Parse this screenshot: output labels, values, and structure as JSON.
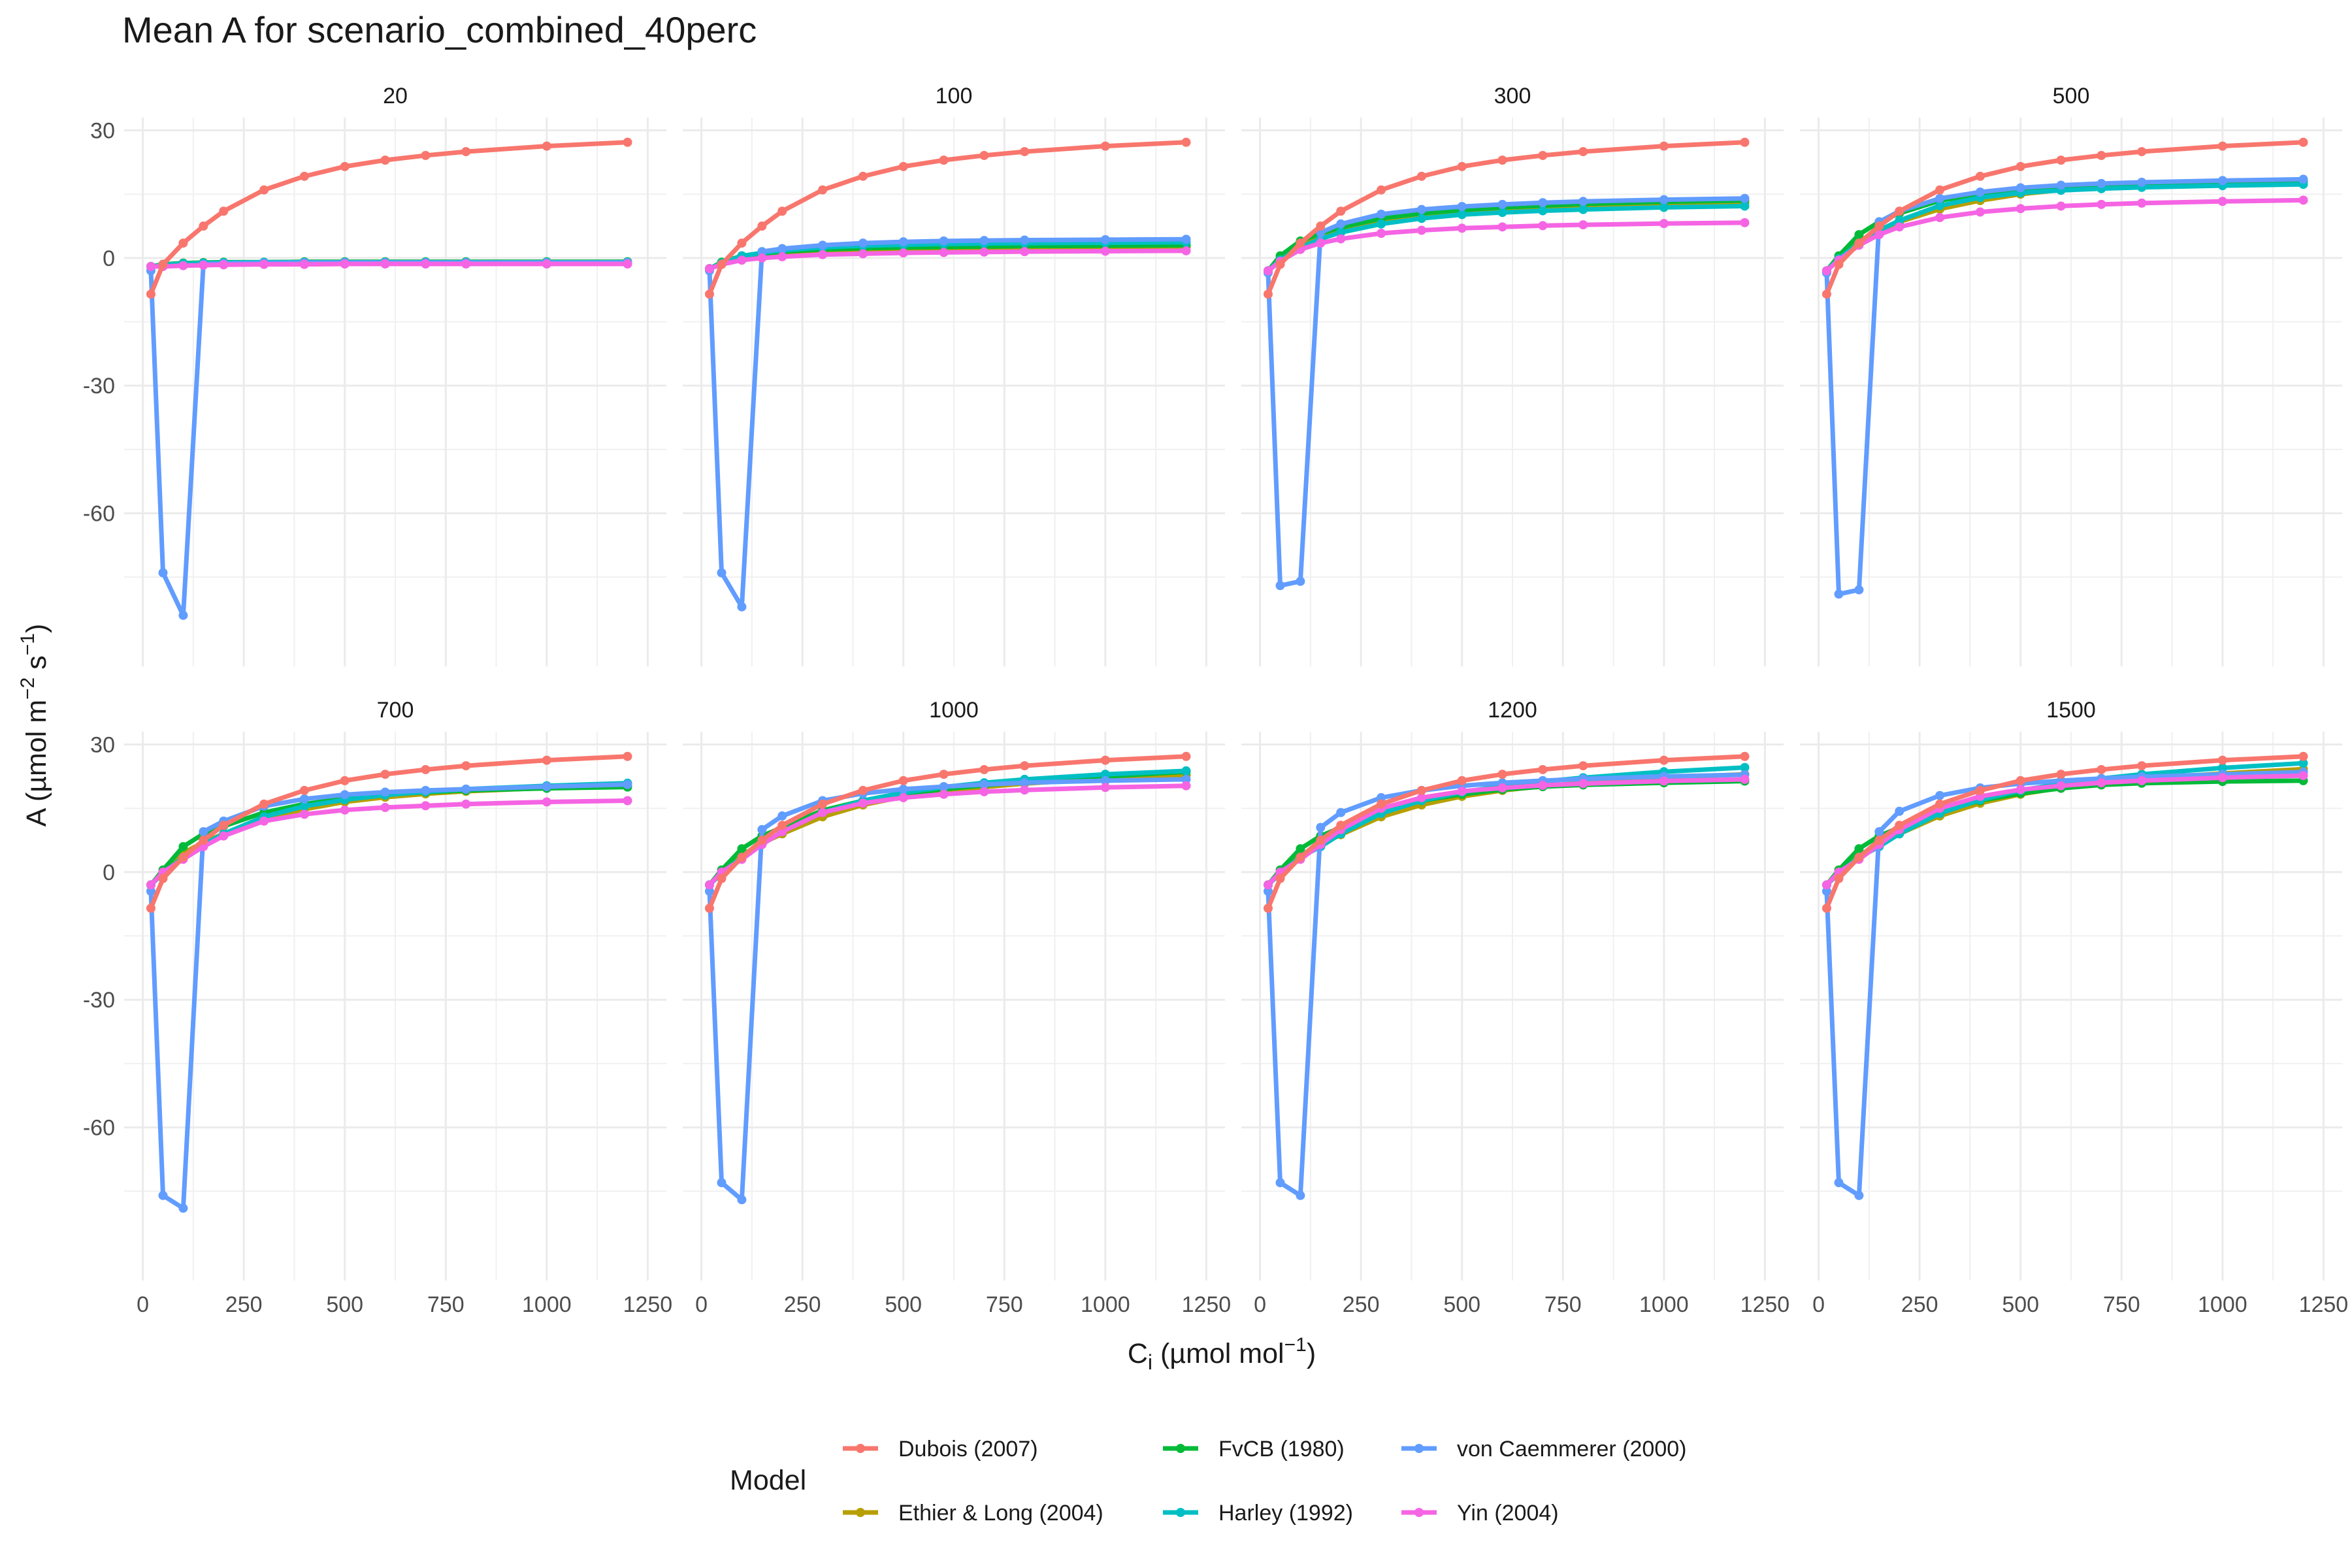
{
  "chart_data": {
    "type": "line",
    "title": "Mean A for scenario_combined_40perc",
    "xlabel": "C_i (µmol mol^-1)",
    "ylabel": "A (µmol m^-2 s^-1)",
    "xlim": [
      0,
      1250
    ],
    "ylim": [
      -90,
      30
    ],
    "x_ticks": [
      0,
      250,
      500,
      750,
      1000,
      1250
    ],
    "x_tick_labels": [
      "0",
      "250",
      "500",
      "750",
      "1000",
      "1250"
    ],
    "y_ticks": [
      -60,
      -30,
      0,
      30
    ],
    "y_tick_labels": [
      "-60",
      "-30",
      "0",
      "30"
    ],
    "x": [
      20,
      50,
      100,
      150,
      200,
      300,
      400,
      500,
      600,
      700,
      800,
      1000,
      1200
    ],
    "legend": {
      "title": "Model",
      "items": [
        {
          "name": "Dubois (2007)",
          "color": "#F8766D"
        },
        {
          "name": "Ethier & Long (2004)",
          "color": "#B79F00"
        },
        {
          "name": "FvCB (1980)",
          "color": "#00BA38"
        },
        {
          "name": "Harley (1992)",
          "color": "#00BFC4"
        },
        {
          "name": "von Caemmerer (2000)",
          "color": "#619CFF"
        },
        {
          "name": "Yin (2004)",
          "color": "#F564E3"
        }
      ]
    },
    "panels": [
      {
        "label": "20",
        "series": [
          {
            "name": "Ethier & Long (2004)",
            "values": [
              -2,
              -1.5,
              -1.2,
              -1.1,
              -1.0,
              -1.0,
              -0.9,
              -0.9,
              -0.9,
              -0.9,
              -0.9,
              -0.9,
              -0.9
            ]
          },
          {
            "name": "FvCB (1980)",
            "values": [
              -2,
              -1.5,
              -1.2,
              -1.1,
              -1.0,
              -1.0,
              -0.9,
              -0.9,
              -0.9,
              -0.9,
              -0.9,
              -0.9,
              -0.9
            ]
          },
          {
            "name": "Harley (1992)",
            "values": [
              -2,
              -1.6,
              -1.3,
              -1.2,
              -1.1,
              -1.0,
              -1.0,
              -1.0,
              -1.0,
              -1.0,
              -1.0,
              -1.0,
              -1.0
            ]
          },
          {
            "name": "von Caemmerer (2000)",
            "values": [
              -3,
              -74,
              -84,
              -1.5,
              -1.3,
              -1.2,
              -1.1,
              -1.1,
              -1.1,
              -1.1,
              -1.1,
              -1.1,
              -1.1
            ]
          },
          {
            "name": "Yin (2004)",
            "values": [
              -2,
              -2,
              -1.8,
              -1.7,
              -1.6,
              -1.5,
              -1.5,
              -1.4,
              -1.4,
              -1.4,
              -1.4,
              -1.4,
              -1.4
            ]
          },
          {
            "name": "Dubois (2007)",
            "values": [
              -8.5,
              -1.5,
              3.5,
              7.5,
              11,
              16,
              19.2,
              21.5,
              23,
              24.1,
              25,
              26.3,
              27.2
            ]
          }
        ]
      },
      {
        "label": "100",
        "series": [
          {
            "name": "Ethier & Long (2004)",
            "values": [
              -2.5,
              -1.5,
              0,
              0.5,
              1,
              1.5,
              1.8,
              2,
              2.2,
              2.3,
              2.4,
              2.5,
              2.6
            ]
          },
          {
            "name": "FvCB (1980)",
            "values": [
              -2.5,
              -1,
              0.5,
              1,
              1.5,
              2,
              2.3,
              2.5,
              2.6,
              2.7,
              2.8,
              2.9,
              3
            ]
          },
          {
            "name": "Harley (1992)",
            "values": [
              -2.5,
              -1.2,
              0.5,
              1.2,
              1.8,
              2.5,
              2.9,
              3.1,
              3.3,
              3.4,
              3.5,
              3.6,
              3.7
            ]
          },
          {
            "name": "von Caemmerer (2000)",
            "values": [
              -3,
              -74,
              -82,
              1.5,
              2.2,
              3,
              3.5,
              3.8,
              4,
              4.1,
              4.2,
              4.3,
              4.4
            ]
          },
          {
            "name": "Yin (2004)",
            "values": [
              -2.5,
              -1.5,
              -0.5,
              0,
              0.3,
              0.8,
              1.0,
              1.2,
              1.3,
              1.4,
              1.5,
              1.6,
              1.7
            ]
          },
          {
            "name": "Dubois (2007)",
            "values": [
              -8.5,
              -1.5,
              3.5,
              7.5,
              11,
              16,
              19.2,
              21.5,
              23,
              24.1,
              25,
              26.3,
              27.2
            ]
          }
        ]
      },
      {
        "label": "300",
        "series": [
          {
            "name": "Ethier & Long (2004)",
            "values": [
              -3,
              -0.5,
              3,
              5,
              6.5,
              8.5,
              9.8,
              10.6,
              11.2,
              11.6,
              12,
              12.5,
              12.8
            ]
          },
          {
            "name": "FvCB (1980)",
            "values": [
              -3,
              0.5,
              4,
              5.8,
              7.2,
              9.3,
              10.5,
              11.3,
              11.9,
              12.3,
              12.7,
              13.2,
              13.5
            ]
          },
          {
            "name": "Harley (1992)",
            "values": [
              -3,
              -0.5,
              2.5,
              4.5,
              6,
              8,
              9.3,
              10.2,
              10.7,
              11.1,
              11.4,
              11.9,
              12.2
            ]
          },
          {
            "name": "von Caemmerer (2000)",
            "values": [
              -3.5,
              -77,
              -76,
              6,
              8,
              10.3,
              11.4,
              12.1,
              12.6,
              13,
              13.3,
              13.7,
              14
            ]
          },
          {
            "name": "Yin (2004)",
            "values": [
              -3,
              -0.8,
              2,
              3.5,
              4.5,
              5.8,
              6.5,
              7,
              7.3,
              7.6,
              7.8,
              8.1,
              8.3
            ]
          },
          {
            "name": "Dubois (2007)",
            "values": [
              -8.5,
              -1.5,
              3.5,
              7.5,
              11,
              16,
              19.2,
              21.5,
              23,
              24.1,
              25,
              26.3,
              27.2
            ]
          }
        ]
      },
      {
        "label": "500",
        "series": [
          {
            "name": "Ethier & Long (2004)",
            "values": [
              -3,
              0,
              4,
              6.5,
              8.5,
              11.5,
              13.5,
              15,
              16,
              16.6,
              17.1,
              17.7,
              18
            ]
          },
          {
            "name": "FvCB (1980)",
            "values": [
              -3,
              0.5,
              5.5,
              8.5,
              10.5,
              13.5,
              15,
              16,
              16.7,
              17.1,
              17.4,
              17.8,
              18
            ]
          },
          {
            "name": "Harley (1992)",
            "values": [
              -3,
              -0.2,
              3.5,
              6.5,
              8.8,
              12.3,
              14.2,
              15.3,
              15.9,
              16.3,
              16.6,
              17,
              17.3
            ]
          },
          {
            "name": "von Caemmerer (2000)",
            "values": [
              -3.5,
              -79,
              -78,
              8.5,
              11,
              14,
              15.5,
              16.5,
              17.1,
              17.5,
              17.8,
              18.2,
              18.5
            ]
          },
          {
            "name": "Yin (2004)",
            "values": [
              -3,
              -0.5,
              3,
              5.5,
              7.3,
              9.5,
              10.8,
              11.6,
              12.2,
              12.6,
              12.9,
              13.3,
              13.6
            ]
          },
          {
            "name": "Dubois (2007)",
            "values": [
              -8.5,
              -1.5,
              3.5,
              7.5,
              11,
              16,
              19.2,
              21.5,
              23,
              24.1,
              25,
              26.3,
              27.2
            ]
          }
        ]
      },
      {
        "label": "700",
        "series": [
          {
            "name": "Ethier & Long (2004)",
            "values": [
              -3,
              0,
              4.5,
              7,
              9,
              12.5,
              14.8,
              16.5,
              17.6,
              18.4,
              19,
              19.8,
              20.3
            ]
          },
          {
            "name": "FvCB (1980)",
            "values": [
              -3,
              0.5,
              6,
              9,
              10.8,
              14,
              16,
              17.3,
              18.2,
              18.8,
              19.2,
              19.7,
              20
            ]
          },
          {
            "name": "Harley (1992)",
            "values": [
              -3,
              -0.3,
              3.5,
              6.5,
              9,
              13,
              15.5,
              17,
              18.1,
              18.9,
              19.5,
              20.3,
              20.9
            ]
          },
          {
            "name": "von Caemmerer (2000)",
            "values": [
              -4.5,
              -76,
              -79,
              9.5,
              12,
              15.5,
              17.2,
              18.2,
              18.8,
              19.2,
              19.5,
              20.1,
              20.6
            ]
          },
          {
            "name": "Yin (2004)",
            "values": [
              -3,
              0,
              3,
              6,
              8.5,
              12,
              13.6,
              14.6,
              15.2,
              15.6,
              16,
              16.5,
              16.8
            ]
          },
          {
            "name": "Dubois (2007)",
            "values": [
              -8.5,
              -1.5,
              3.5,
              7.5,
              11,
              16,
              19.2,
              21.5,
              23,
              24.1,
              25,
              26.3,
              27.2
            ]
          }
        ]
      },
      {
        "label": "1000",
        "series": [
          {
            "name": "Ethier & Long (2004)",
            "values": [
              -3,
              0,
              4,
              6.8,
              9,
              13,
              15.8,
              17.7,
              19,
              20,
              20.8,
              22,
              22.8
            ]
          },
          {
            "name": "FvCB (1980)",
            "values": [
              -3,
              0.5,
              5.5,
              8.5,
              10.5,
              14.5,
              16.8,
              18.3,
              19.5,
              20.4,
              21.2,
              22.5,
              23.6
            ]
          },
          {
            "name": "Harley (1992)",
            "values": [
              -3,
              -0.3,
              3.5,
              6.5,
              9.5,
              14,
              16.8,
              18.7,
              20,
              21,
              21.8,
              23,
              23.8
            ]
          },
          {
            "name": "von Caemmerer (2000)",
            "values": [
              -4.5,
              -73,
              -77,
              10,
              13.2,
              16.8,
              18.5,
              19.5,
              20.1,
              20.6,
              21,
              21.5,
              21.8
            ]
          },
          {
            "name": "Yin (2004)",
            "values": [
              -3,
              0,
              3,
              6.5,
              9.5,
              14,
              16.2,
              17.5,
              18.3,
              18.9,
              19.3,
              19.9,
              20.3
            ]
          },
          {
            "name": "Dubois (2007)",
            "values": [
              -8.5,
              -1.5,
              3.5,
              7.5,
              11,
              16,
              19.2,
              21.5,
              23,
              24.1,
              25,
              26.3,
              27.2
            ]
          }
        ]
      },
      {
        "label": "1200",
        "series": [
          {
            "name": "Ethier & Long (2004)",
            "values": [
              -3,
              0,
              4,
              6.5,
              8.8,
              13,
              15.8,
              17.8,
              19.2,
              20.2,
              21,
              22.2,
              23
            ]
          },
          {
            "name": "FvCB (1980)",
            "values": [
              -3,
              0.5,
              5.5,
              8.5,
              10.5,
              14,
              16.8,
              18.3,
              19.4,
              20.1,
              20.5,
              21,
              21.4
            ]
          },
          {
            "name": "Harley (1992)",
            "values": [
              -3,
              -0.3,
              3.5,
              6,
              9,
              13.8,
              16.8,
              18.8,
              20.2,
              21.3,
              22.2,
              23.6,
              24.6
            ]
          },
          {
            "name": "von Caemmerer (2000)",
            "values": [
              -4.5,
              -73,
              -76,
              10.5,
              14,
              17.5,
              19.2,
              20.3,
              21,
              21.5,
              21.9,
              22.5,
              22.9
            ]
          },
          {
            "name": "Yin (2004)",
            "values": [
              -3,
              0,
              3,
              6.5,
              10,
              15,
              17.5,
              19,
              19.8,
              20.4,
              20.8,
              21.4,
              21.8
            ]
          },
          {
            "name": "Dubois (2007)",
            "values": [
              -8.5,
              -1.5,
              3.5,
              7.5,
              11,
              16,
              19.2,
              21.5,
              23,
              24.1,
              25,
              26.3,
              27.2
            ]
          }
        ]
      },
      {
        "label": "1500",
        "series": [
          {
            "name": "Ethier & Long (2004)",
            "values": [
              -3,
              0,
              4,
              6.5,
              9,
              13.2,
              16.2,
              18.3,
              19.8,
              21,
              21.9,
              23.2,
              24.2
            ]
          },
          {
            "name": "FvCB (1980)",
            "values": [
              -3,
              0.5,
              5.5,
              8.5,
              10.5,
              14.2,
              16.8,
              18.5,
              19.7,
              20.5,
              20.9,
              21.3,
              21.5
            ]
          },
          {
            "name": "Harley (1992)",
            "values": [
              -3,
              -0.3,
              3.5,
              6,
              9,
              13.8,
              17,
              19.2,
              20.8,
              22,
              23,
              24.5,
              25.6
            ]
          },
          {
            "name": "von Caemmerer (2000)",
            "values": [
              -4.5,
              -73,
              -76,
              9.5,
              14.3,
              18,
              19.8,
              20.8,
              21.5,
              22,
              22.4,
              23,
              23.5
            ]
          },
          {
            "name": "Yin (2004)",
            "values": [
              -3,
              0,
              3,
              6.5,
              10,
              15,
              17.8,
              19.4,
              20.3,
              21,
              21.5,
              22.2,
              22.7
            ]
          },
          {
            "name": "Dubois (2007)",
            "values": [
              -8.5,
              -1.5,
              3.5,
              7.5,
              11,
              16,
              19.2,
              21.5,
              23,
              24.1,
              25,
              26.3,
              27.2
            ]
          }
        ]
      }
    ]
  }
}
